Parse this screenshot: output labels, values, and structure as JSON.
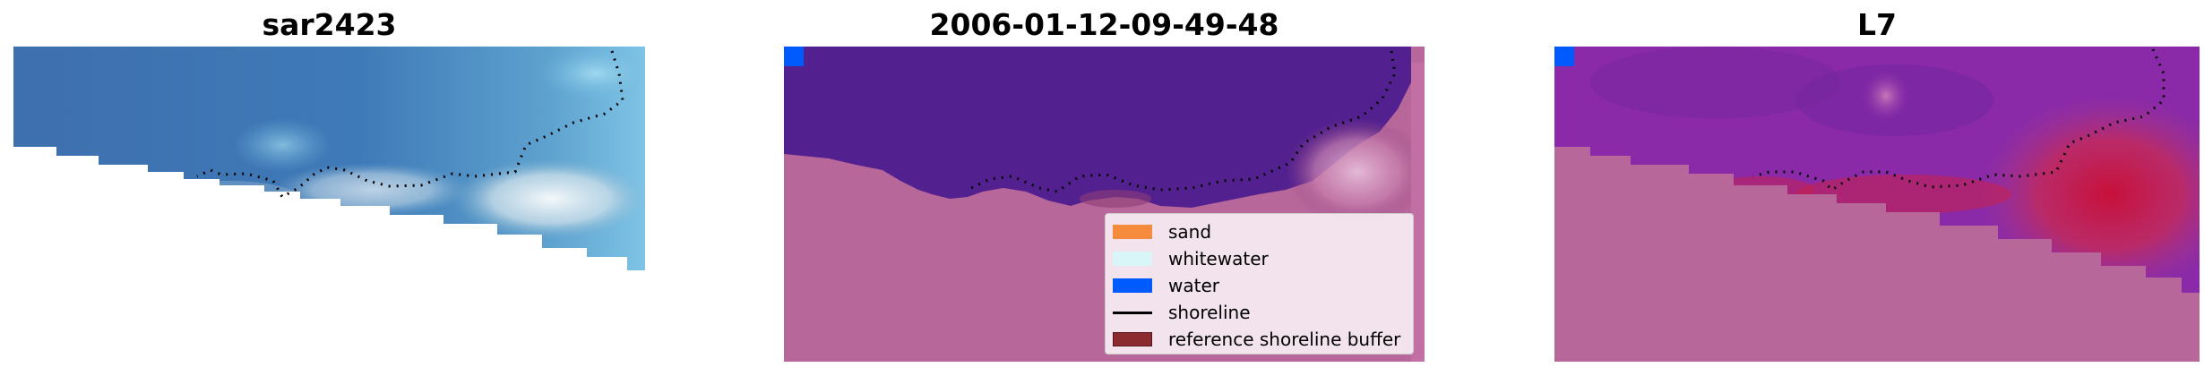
{
  "panels": [
    {
      "title": "sar2423"
    },
    {
      "title": "2006-01-12-09-49-48"
    },
    {
      "title": "L7"
    }
  ],
  "legend": {
    "items": [
      {
        "label": "sand",
        "color": "#f58b3c"
      },
      {
        "label": "whitewater",
        "color": "#d8f5f8"
      },
      {
        "label": "water",
        "color": "#005bff"
      },
      {
        "label": "shoreline",
        "color": "#000000"
      },
      {
        "label": "reference shoreline buffer",
        "color": "#8b2a2f"
      }
    ]
  },
  "colors": {
    "nodata": "#b8679a",
    "water_class": "#53218f",
    "sea_rgb": "#3f74b3",
    "white_surf": "#eef5f8",
    "index_low": "#8a2aa8",
    "index_high": "#c8103a"
  }
}
